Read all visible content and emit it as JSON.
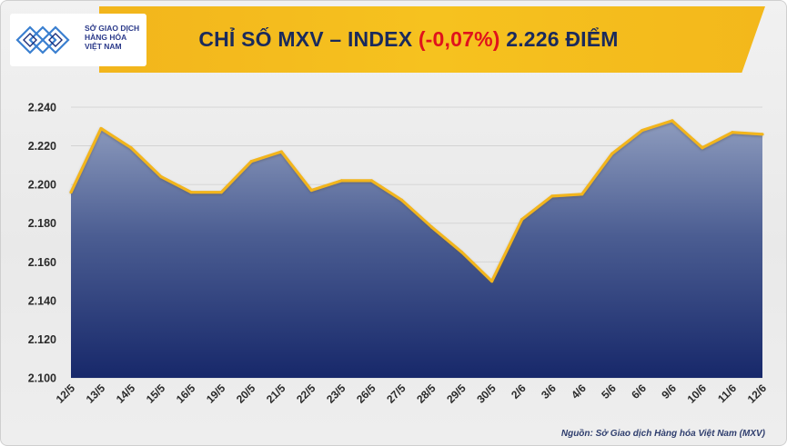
{
  "header": {
    "title_prefix": "CHỈ SỐ MXV – INDEX ",
    "title_change": "(-0,07%)",
    "title_suffix": " 2.226 ĐIỂM"
  },
  "logo": {
    "line1": "SỞ GIAO DỊCH",
    "line2": "HÀNG HÓA",
    "line3": "VIỆT NAM"
  },
  "source": "Nguồn: Sở Giao dịch Hàng hóa Việt Nam (MXV)",
  "colors": {
    "banner": "#f4bb1d",
    "line": "#f2b51c",
    "area_top": "#7f8fb4",
    "area_bottom": "#1a2a66",
    "negative": "#e0121c",
    "title": "#1a2a5c"
  },
  "chart_data": {
    "type": "area",
    "title": "CHỈ SỐ MXV – INDEX (-0,07%) 2.226 ĐIỂM",
    "x": [
      "12/5",
      "13/5",
      "14/5",
      "15/5",
      "16/5",
      "19/5",
      "20/5",
      "21/5",
      "22/5",
      "23/5",
      "26/5",
      "27/5",
      "28/5",
      "29/5",
      "30/5",
      "2/6",
      "3/6",
      "4/6",
      "5/6",
      "6/6",
      "9/6",
      "10/6",
      "11/6",
      "12/6"
    ],
    "series": [
      {
        "values": [
          2196,
          2229,
          2219,
          2204,
          2196,
          2196,
          2212,
          2217,
          2197,
          2202,
          2202,
          2192,
          2178,
          2165,
          2150,
          2182,
          2194,
          2195,
          2216,
          2228,
          2233,
          2219,
          2227,
          2226
        ]
      }
    ],
    "y_ticks": [
      "2.100",
      "2.120",
      "2.140",
      "2.160",
      "2.180",
      "2.200",
      "2.220",
      "2.240"
    ],
    "ylim": [
      2100,
      2240
    ],
    "grid": true
  }
}
